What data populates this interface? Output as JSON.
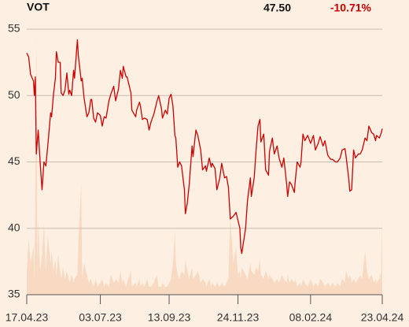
{
  "chart_data": {
    "type": "line",
    "ticker": "VOT",
    "last_price": "47.50",
    "change": "-10.71%",
    "x": [
      "2023-04-17",
      "2023-04-19",
      "2023-04-21",
      "2023-04-24",
      "2023-04-25",
      "2023-04-26",
      "2023-04-27",
      "2023-04-28",
      "2023-04-29",
      "2023-05-01",
      "2023-05-03",
      "2023-05-05",
      "2023-05-07",
      "2023-05-09",
      "2023-05-12",
      "2023-05-13",
      "2023-05-15",
      "2023-05-17",
      "2023-05-18",
      "2023-05-20",
      "2023-05-22",
      "2023-05-23",
      "2023-05-25",
      "2023-05-27",
      "2023-05-29",
      "2023-05-31",
      "2023-06-01",
      "2023-06-03",
      "2023-06-05",
      "2023-06-06",
      "2023-06-09",
      "2023-06-10",
      "2023-06-13",
      "2023-06-14",
      "2023-06-16",
      "2023-06-19",
      "2023-06-21",
      "2023-06-23",
      "2023-06-24",
      "2023-06-26",
      "2023-06-28",
      "2023-06-30",
      "2023-07-03",
      "2023-07-05",
      "2023-07-07",
      "2023-07-09",
      "2023-07-12",
      "2023-07-14",
      "2023-07-17",
      "2023-07-19",
      "2023-07-22",
      "2023-07-24",
      "2023-07-26",
      "2023-07-27",
      "2023-07-30",
      "2023-07-31",
      "2023-08-04",
      "2023-08-05",
      "2023-08-09",
      "2023-08-10",
      "2023-08-13",
      "2023-08-14",
      "2023-08-16",
      "2023-08-18",
      "2023-08-21",
      "2023-08-23",
      "2023-08-25",
      "2023-08-28",
      "2023-08-31",
      "2023-09-02",
      "2023-09-05",
      "2023-09-06",
      "2023-09-09",
      "2023-09-11",
      "2023-09-13",
      "2023-09-15",
      "2023-09-17",
      "2023-09-19",
      "2023-09-20",
      "2023-09-22",
      "2023-09-24",
      "2023-09-26",
      "2023-09-29",
      "2023-09-30",
      "2023-10-02",
      "2023-10-04",
      "2023-10-07",
      "2023-10-08",
      "2023-10-11",
      "2023-10-13",
      "2023-10-16",
      "2023-10-18",
      "2023-10-21",
      "2023-10-22",
      "2023-10-25",
      "2023-10-27",
      "2023-10-28",
      "2023-10-31",
      "2023-11-02",
      "2023-11-05",
      "2023-11-07",
      "2023-11-10",
      "2023-11-12",
      "2023-11-14",
      "2023-11-16",
      "2023-11-19",
      "2023-11-22",
      "2023-11-24",
      "2023-11-26",
      "2023-11-27",
      "2023-11-28",
      "2023-12-02",
      "2023-12-04",
      "2023-12-07",
      "2023-12-08",
      "2023-12-11",
      "2023-12-13",
      "2023-12-15",
      "2023-12-17",
      "2023-12-18",
      "2023-12-21",
      "2023-12-23",
      "2023-12-26",
      "2023-12-27",
      "2023-12-30",
      "2024-01-01",
      "2024-01-04",
      "2024-01-06",
      "2024-01-09",
      "2024-01-11",
      "2024-01-14",
      "2024-01-15",
      "2024-01-17",
      "2024-01-19",
      "2024-01-22",
      "2024-01-23",
      "2024-01-25",
      "2024-01-28",
      "2024-01-29",
      "2024-01-31",
      "2024-02-02",
      "2024-02-05",
      "2024-02-08",
      "2024-02-11",
      "2024-02-13",
      "2024-02-16",
      "2024-02-18",
      "2024-02-21",
      "2024-02-23",
      "2024-02-26",
      "2024-02-29",
      "2024-03-02",
      "2024-03-05",
      "2024-03-07",
      "2024-03-10",
      "2024-03-12",
      "2024-03-15",
      "2024-03-16",
      "2024-03-19",
      "2024-03-20",
      "2024-03-22",
      "2024-03-24",
      "2024-03-26",
      "2024-03-29",
      "2024-03-31",
      "2024-04-02",
      "2024-04-05",
      "2024-04-07",
      "2024-04-09",
      "2024-04-12",
      "2024-04-14",
      "2024-04-16",
      "2024-04-17",
      "2024-04-20",
      "2024-04-22",
      "2024-04-23"
    ],
    "series": [
      {
        "color": "#cc0000",
        "values": [
          53.2,
          52.9,
          51.6,
          51.1,
          50.0,
          51.4,
          45.6,
          46.5,
          47.4,
          45.0,
          42.9,
          45.0,
          44.7,
          46.2,
          48.7,
          48.4,
          50.1,
          51.3,
          53.3,
          52.5,
          52.5,
          50.2,
          50.0,
          50.4,
          51.7,
          50.1,
          50.4,
          50.0,
          51.9,
          51.3,
          54.2,
          53.0,
          51.1,
          51.3,
          49.8,
          48.4,
          48.7,
          49.7,
          49.7,
          48.3,
          48.0,
          48.7,
          48.5,
          47.7,
          48.4,
          48.3,
          49.6,
          50.1,
          50.7,
          49.6,
          50.5,
          51.9,
          51.3,
          52.2,
          51.4,
          51.4,
          50.2,
          48.9,
          48.4,
          48.9,
          49.5,
          49.2,
          48.2,
          48.3,
          48.2,
          47.4,
          48.0,
          48.6,
          49.5,
          50.0,
          49.0,
          48.3,
          48.9,
          48.6,
          49.8,
          50.1,
          49.2,
          47.0,
          46.8,
          44.6,
          45.0,
          44.7,
          42.9,
          41.1,
          41.9,
          43.3,
          46.2,
          45.4,
          47.4,
          47.0,
          45.9,
          44.4,
          44.7,
          44.3,
          45.3,
          44.6,
          44.9,
          44.5,
          42.9,
          43.8,
          44.9,
          43.8,
          43.9,
          43.1,
          40.7,
          40.9,
          41.2,
          40.6,
          40.0,
          38.5,
          38.1,
          40.0,
          42.1,
          43.8,
          42.4,
          43.8,
          45.9,
          47.7,
          48.2,
          46.5,
          47.1,
          44.4,
          44.0,
          45.8,
          46.8,
          45.6,
          46.2,
          45.3,
          44.6,
          45.3,
          43.3,
          42.4,
          43.5,
          43.3,
          42.7,
          43.6,
          45.0,
          44.6,
          45.0,
          47.1,
          46.6,
          47.0,
          46.4,
          47.0,
          45.9,
          46.4,
          46.9,
          46.2,
          46.6,
          45.5,
          45.2,
          45.2,
          45.0,
          45.0,
          45.3,
          45.9,
          46.0,
          45.5,
          43.7,
          42.8,
          42.9,
          45.9,
          45.3,
          45.6,
          45.6,
          45.9,
          46.8,
          46.6,
          47.7,
          47.2,
          47.1,
          46.6,
          47.0,
          46.8,
          47.2,
          47.5
        ]
      }
    ],
    "volume": {
      "color": "#f8dac2",
      "values": [
        30,
        70,
        40,
        60,
        20,
        120,
        330,
        40,
        95,
        30,
        50,
        90,
        30,
        75,
        40,
        55,
        30,
        45,
        25,
        50,
        30,
        20,
        35,
        20,
        30,
        20,
        15,
        25,
        15,
        20,
        25,
        65,
        140,
        20,
        40,
        25,
        15,
        20,
        15,
        10,
        20,
        10,
        15,
        20,
        10,
        15,
        10,
        25,
        15,
        20,
        15,
        30,
        15,
        20,
        10,
        15,
        30,
        10,
        15,
        10,
        20,
        10,
        15,
        10,
        20,
        10,
        10,
        15,
        25,
        10,
        10,
        15,
        10,
        10,
        15,
        20,
        40,
        80,
        40,
        25,
        20,
        30,
        25,
        45,
        30,
        20,
        35,
        20,
        25,
        30,
        15,
        20,
        15,
        10,
        20,
        10,
        15,
        10,
        15,
        10,
        15,
        10,
        15,
        20,
        100,
        40,
        60,
        25,
        30,
        20,
        35,
        25,
        20,
        40,
        30,
        25,
        35,
        30,
        45,
        25,
        20,
        30,
        20,
        25,
        20,
        15,
        20,
        15,
        25,
        20,
        15,
        25,
        15,
        20,
        15,
        20,
        10,
        15,
        10,
        20,
        15,
        10,
        20,
        10,
        15,
        10,
        20,
        15,
        10,
        15,
        10,
        15,
        10,
        15,
        10,
        20,
        15,
        30,
        20,
        25,
        15,
        20,
        15,
        20,
        25,
        20,
        55,
        30,
        20,
        25,
        15,
        20,
        15,
        20,
        30,
        95
      ]
    },
    "xlim": [
      "2023-04-17",
      "2024-04-23"
    ],
    "xticks": [
      {
        "value": "2023-04-17",
        "label": "17.04.23"
      },
      {
        "value": "2023-07-03",
        "label": "03.07.23"
      },
      {
        "value": "2023-09-13",
        "label": "13.09.23"
      },
      {
        "value": "2023-11-24",
        "label": "24.11.23"
      },
      {
        "value": "2024-02-08",
        "label": "08.02.24"
      },
      {
        "value": "2024-04-23",
        "label": "23.04.24"
      }
    ],
    "ylim": [
      35,
      55
    ],
    "yticks": [
      35,
      40,
      45,
      50,
      55
    ],
    "grid": true
  }
}
